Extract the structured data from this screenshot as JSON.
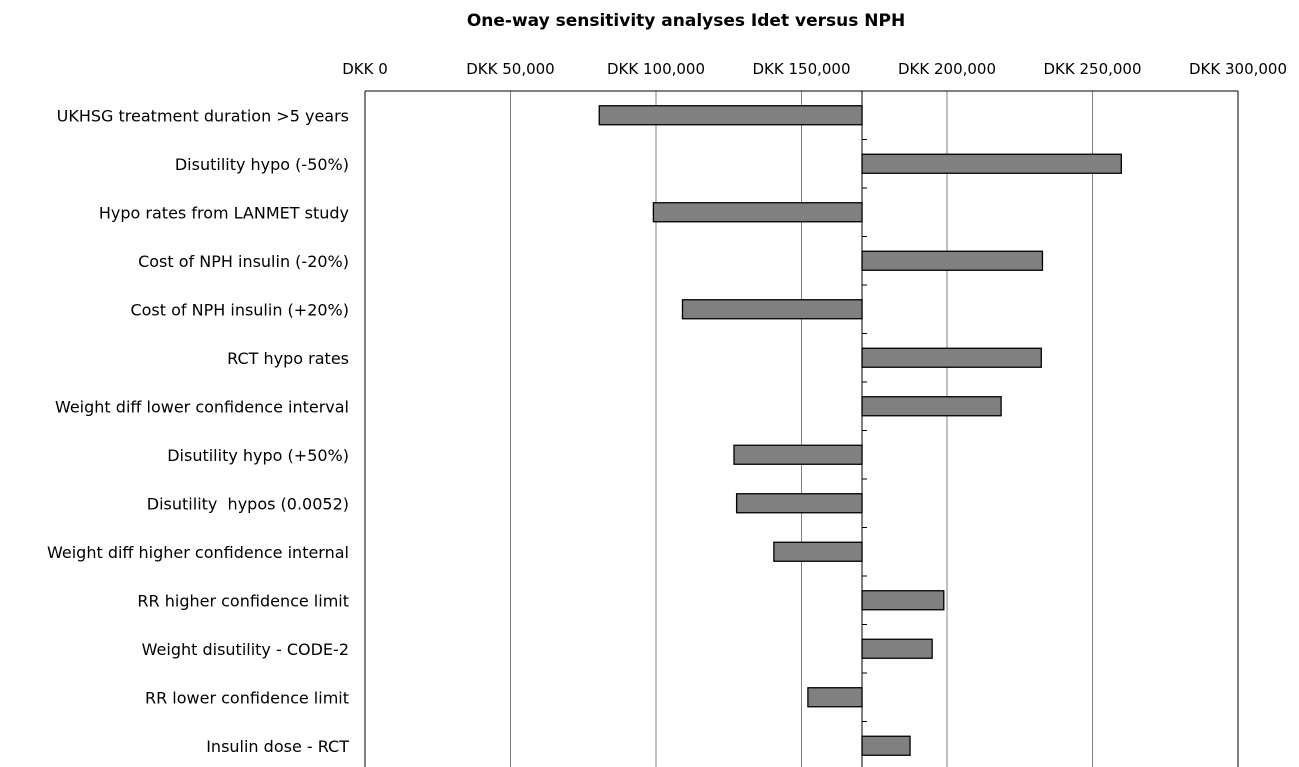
{
  "colors": {
    "bar_fill": "#808080",
    "bar_stroke": "#000000",
    "grid": "#808080",
    "background": "#ffffff"
  },
  "chart_data": {
    "type": "bar",
    "orientation": "horizontal",
    "subtype": "tornado",
    "title": "One-way sensitivity analyses Idet versus NPH",
    "xlabel": "",
    "ylabel": "",
    "x_axis_position": "top",
    "xlim": [
      0,
      300000
    ],
    "base_value": 170800,
    "grid": true,
    "x_ticks": [
      0,
      50000,
      100000,
      150000,
      200000,
      250000,
      300000
    ],
    "x_tick_labels": [
      "DKK 0",
      "DKK 50,000",
      "DKK 100,000",
      "DKK 150,000",
      "DKK 200,000",
      "DKK 250,000",
      "DKK 300,000"
    ],
    "categories": [
      "UKHSG treatment duration >5 years",
      "Disutility hypo (-50%)",
      "Hypo rates from LANMET study",
      "Cost of NPH insulin (-20%)",
      "Cost of NPH insulin (+20%)",
      "RCT hypo rates",
      "Weight diff lower confidence interval",
      "Disutility hypo (+50%)",
      "Disutility  hypos (0.0052)",
      "Weight diff higher confidence internal",
      "RR higher confidence limit",
      "Weight disutility - CODE-2",
      "RR lower confidence limit",
      "Insulin dose - RCT"
    ],
    "values": [
      80500,
      259900,
      99100,
      232800,
      109100,
      232400,
      218600,
      126800,
      127700,
      140500,
      198900,
      194900,
      152200,
      187300
    ]
  }
}
